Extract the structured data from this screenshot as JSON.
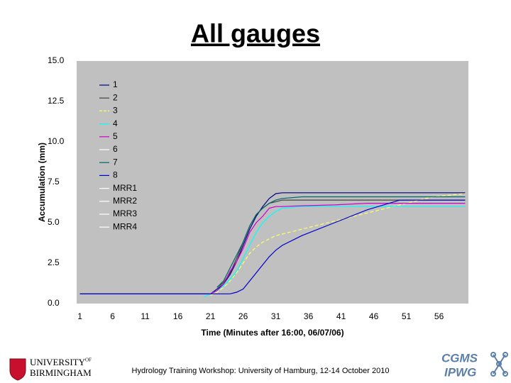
{
  "chart_data": {
    "type": "line",
    "title": "All gauges",
    "x_label": "Time (Minutes after 16:00, 06/07/06)",
    "y_label": "Accumulation (mm)",
    "x": [
      1,
      20,
      21,
      22,
      23,
      24,
      25,
      26,
      27,
      28,
      29,
      30,
      31,
      32,
      35,
      40,
      45,
      50,
      55,
      60
    ],
    "series": [
      {
        "name": "1",
        "color": "#000080",
        "values": [
          0.6,
          0.6,
          0.6,
          0.9,
          1.2,
          1.8,
          2.6,
          3.6,
          4.6,
          5.4,
          6.0,
          6.5,
          6.8,
          6.85,
          6.85,
          6.85,
          6.85,
          6.85,
          6.85,
          6.85
        ]
      },
      {
        "name": "2",
        "color": "#404040",
        "values": [
          null,
          null,
          null,
          1.0,
          1.3,
          1.9,
          2.8,
          3.8,
          4.8,
          5.5,
          5.9,
          6.2,
          6.3,
          6.4,
          6.4,
          6.4,
          6.4,
          6.4,
          6.4,
          6.4
        ]
      },
      {
        "name": "3",
        "color": "#ffff66",
        "style": "dashed",
        "values": [
          null,
          null,
          0.5,
          0.7,
          1.0,
          1.4,
          1.9,
          2.5,
          3.1,
          3.5,
          3.8,
          4.0,
          4.2,
          4.3,
          4.6,
          5.1,
          5.6,
          6.1,
          6.6,
          6.8
        ]
      },
      {
        "name": "4",
        "color": "#00ffff",
        "values": [
          null,
          0.4,
          0.6,
          0.8,
          1.1,
          1.5,
          2.0,
          2.8,
          3.6,
          4.4,
          5.0,
          5.4,
          5.7,
          5.9,
          6.0,
          6.0,
          6.0,
          6.0,
          6.0,
          6.0
        ]
      },
      {
        "name": "5",
        "color": "#cc00cc",
        "values": [
          null,
          null,
          0.6,
          0.8,
          1.2,
          2.0,
          2.6,
          3.4,
          4.4,
          5.0,
          5.4,
          5.9,
          6.0,
          6.0,
          6.05,
          6.1,
          6.2,
          6.2,
          6.2,
          6.2
        ]
      },
      {
        "name": "6",
        "color": "#ffffff",
        "values": [
          null,
          null,
          null,
          null,
          null,
          null,
          null,
          null,
          null,
          null,
          null,
          null,
          null,
          null,
          null,
          null,
          null,
          null,
          null,
          null
        ]
      },
      {
        "name": "7",
        "color": "#006666",
        "values": [
          null,
          null,
          null,
          1.0,
          1.4,
          2.2,
          3.0,
          3.8,
          4.8,
          5.5,
          5.9,
          6.2,
          6.4,
          6.5,
          6.6,
          6.6,
          6.6,
          6.6,
          6.6,
          6.6
        ]
      },
      {
        "name": "8",
        "color": "#0000cc",
        "values": [
          0.6,
          0.6,
          0.6,
          0.6,
          0.6,
          0.6,
          0.7,
          0.9,
          1.4,
          1.9,
          2.4,
          2.9,
          3.3,
          3.6,
          4.2,
          5.0,
          5.8,
          6.4,
          6.4,
          6.4
        ]
      },
      {
        "name": "MRR1",
        "color": "#ffffff",
        "values": [
          null,
          null,
          null,
          null,
          null,
          null,
          null,
          null,
          null,
          null,
          null,
          null,
          null,
          null,
          null,
          null,
          null,
          null,
          null,
          null
        ]
      },
      {
        "name": "MRR2",
        "color": "#ffffff",
        "values": [
          null,
          null,
          null,
          null,
          null,
          null,
          null,
          null,
          null,
          null,
          null,
          null,
          null,
          null,
          null,
          null,
          null,
          null,
          null,
          null
        ]
      },
      {
        "name": "MRR3",
        "color": "#ffffff",
        "values": [
          null,
          null,
          null,
          null,
          null,
          null,
          null,
          null,
          null,
          null,
          null,
          null,
          null,
          null,
          null,
          null,
          null,
          null,
          null,
          null
        ]
      },
      {
        "name": "MRR4",
        "color": "#ffffff",
        "values": [
          null,
          null,
          null,
          null,
          null,
          null,
          null,
          null,
          null,
          null,
          null,
          null,
          null,
          null,
          null,
          null,
          null,
          null,
          null,
          null
        ]
      }
    ],
    "xlim": [
      0.5,
      60.5
    ],
    "xticks": [
      1,
      6,
      11,
      16,
      21,
      26,
      31,
      36,
      41,
      46,
      51,
      56
    ],
    "ylim": [
      0,
      15
    ],
    "yticks": [
      {
        "value": 0,
        "label": "0.0"
      },
      2.5,
      {
        "value": 5,
        "label": "5.0"
      },
      7.5,
      {
        "value": 10,
        "label": "10.0"
      },
      12.5,
      {
        "value": 15,
        "label": "15.0"
      }
    ],
    "grid": false,
    "background": "#c0c0c0",
    "legend": "upper left"
  },
  "footer": {
    "university_top": "UNIVERSITY",
    "university_of": "OF",
    "university_bottom": "BIRMINGHAM",
    "caption": "Hydrology Training Workshop: University of Hamburg, 12-14 October 2010",
    "logo_top": "CGMS",
    "logo_bottom": "IPWG"
  }
}
